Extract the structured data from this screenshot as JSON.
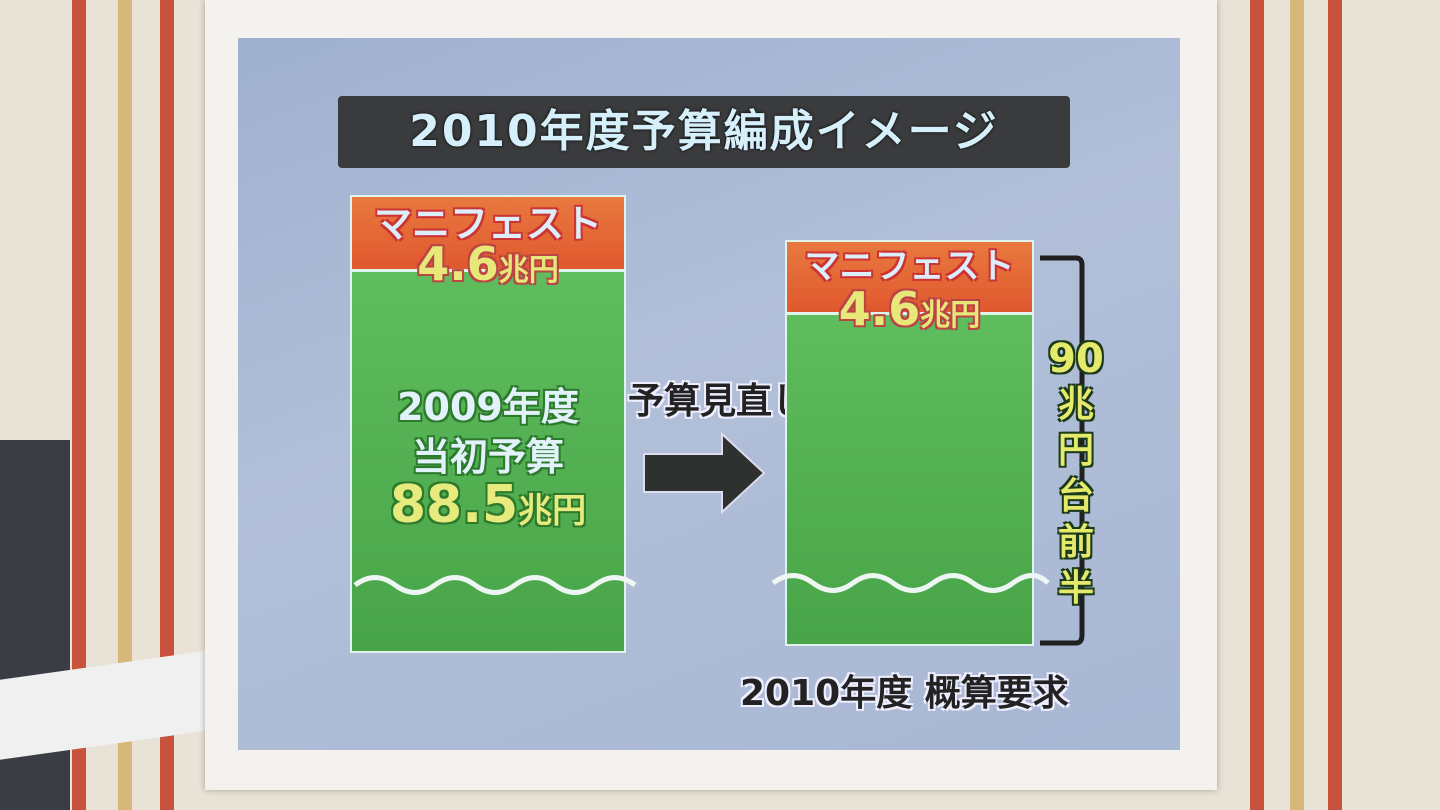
{
  "title": "2010年度予算編成イメージ",
  "left_bar": {
    "top_label": "マニフェスト",
    "top_value": "4.6",
    "top_unit": "兆円",
    "body_line1": "2009年度",
    "body_line2": "当初予算",
    "body_value": "88.5",
    "body_unit": "兆円"
  },
  "arrow_label": "予算見直し",
  "right_bar": {
    "top_label": "マニフェスト",
    "top_value": "4.6",
    "top_unit": "兆円",
    "bracket_label": [
      "90",
      "兆",
      "円",
      "台",
      "前",
      "半"
    ],
    "caption": "2010年度 概算要求"
  },
  "colors": {
    "manifesto": "#e0582e",
    "budget": "#4fae4e",
    "board": "#a9b7d3",
    "title_bg": "#3a3b3d"
  }
}
